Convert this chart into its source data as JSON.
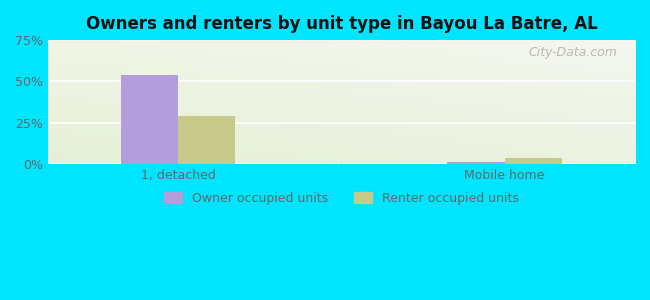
{
  "title": "Owners and renters by unit type in Bayou La Batre, AL",
  "categories": [
    "1, detached",
    "Mobile home"
  ],
  "owner_values": [
    54.0,
    1.5
  ],
  "renter_values": [
    29.0,
    3.5
  ],
  "owner_color": "#b39ddb",
  "renter_color": "#c5c98a",
  "bg_color": "#00e5ff",
  "ylim": [
    0,
    75
  ],
  "yticks": [
    0,
    25,
    50,
    75
  ],
  "ytick_labels": [
    "0%",
    "25%",
    "50%",
    "75%"
  ],
  "legend_owner": "Owner occupied units",
  "legend_renter": "Renter occupied units",
  "watermark": "City-Data.com",
  "bar_width": 0.35,
  "group_positions": [
    1.0,
    3.0
  ],
  "plot_bg_color": "#eef5e4",
  "grid_color": "#ffffff",
  "separator_color": "#aaccaa",
  "tick_label_color": "#666666"
}
